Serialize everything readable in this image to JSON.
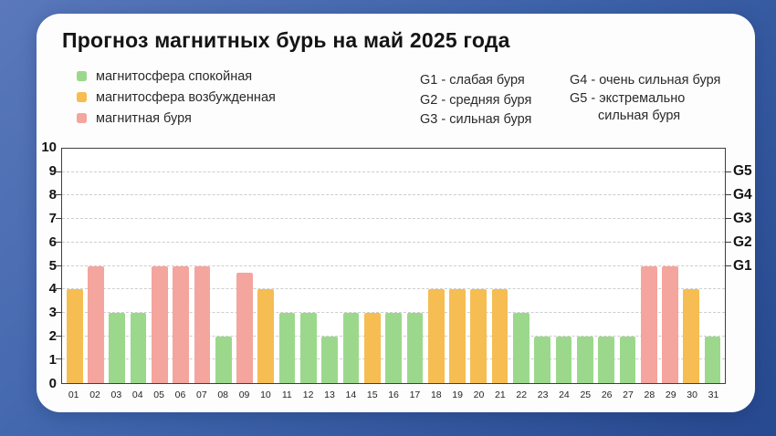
{
  "title": "Прогноз магнитных бурь на май 2025 года",
  "legend": [
    {
      "key": "calm",
      "label": "магнитосфера спокойная",
      "color": "#9cd88c"
    },
    {
      "key": "excited",
      "label": "магнитосфера возбужденная",
      "color": "#f5bd52"
    },
    {
      "key": "storm",
      "label": "магнитная буря",
      "color": "#f4a59d"
    }
  ],
  "storm_scale": {
    "col1": [
      "G1 - слабая буря",
      "G2 - средняя буря",
      "G3 - сильная буря"
    ],
    "col2": [
      "G4 - очень сильная буря",
      "G5 - экстремально",
      "сильная буря"
    ]
  },
  "chart_data": {
    "type": "bar",
    "title": "Прогноз магнитных бурь на май 2025 года",
    "xlabel": "",
    "ylabel": "",
    "ylim": [
      0,
      10
    ],
    "yticks": [
      0,
      1,
      2,
      3,
      4,
      5,
      6,
      7,
      8,
      9,
      10
    ],
    "grid": "horizontal dashed, levels 1-9",
    "legend_position": "top-left",
    "categories": [
      "01",
      "02",
      "03",
      "04",
      "05",
      "06",
      "07",
      "08",
      "09",
      "10",
      "11",
      "12",
      "13",
      "14",
      "15",
      "16",
      "17",
      "18",
      "19",
      "20",
      "21",
      "22",
      "23",
      "24",
      "25",
      "26",
      "27",
      "28",
      "29",
      "30",
      "31"
    ],
    "values": [
      4,
      5,
      3,
      3,
      5,
      5,
      5,
      2,
      4.7,
      4,
      3,
      3,
      2,
      3,
      3,
      3,
      3,
      4,
      4,
      4,
      4,
      3,
      2,
      2,
      2,
      2,
      2,
      5,
      5,
      4,
      2
    ],
    "levels": [
      "excited",
      "storm",
      "calm",
      "calm",
      "storm",
      "storm",
      "storm",
      "calm",
      "storm",
      "excited",
      "calm",
      "calm",
      "calm",
      "calm",
      "excited",
      "calm",
      "calm",
      "excited",
      "excited",
      "excited",
      "excited",
      "calm",
      "calm",
      "calm",
      "calm",
      "calm",
      "calm",
      "storm",
      "storm",
      "excited",
      "calm"
    ],
    "right_axis_labels": [
      {
        "value": 5,
        "label": "G1"
      },
      {
        "value": 6,
        "label": "G2"
      },
      {
        "value": 7,
        "label": "G3"
      },
      {
        "value": 8,
        "label": "G4"
      },
      {
        "value": 9,
        "label": "G5"
      }
    ]
  }
}
